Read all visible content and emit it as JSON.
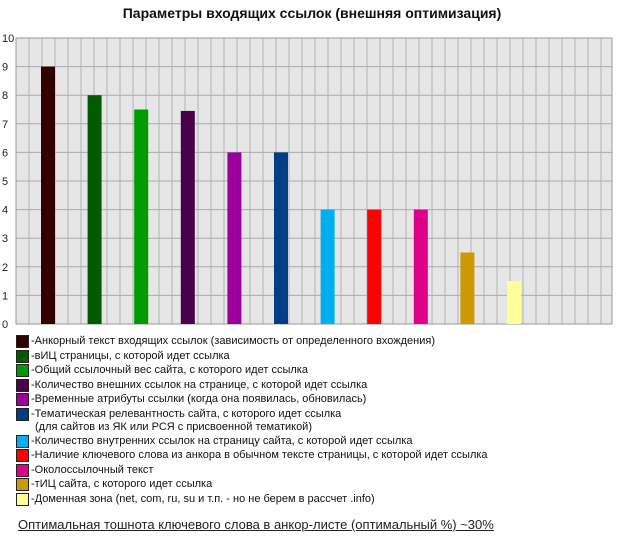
{
  "chart_data": {
    "type": "bar",
    "title": "Параметры входящих ссылок (внешняя оптимизация)",
    "xlabel": "",
    "ylabel": "",
    "ylim": [
      0,
      10
    ],
    "yticks": [
      "0",
      "1",
      "2",
      "3",
      "4",
      "5",
      "6",
      "7",
      "8",
      "9",
      "10"
    ],
    "grid": true,
    "legend_position": "bottom",
    "series": [
      {
        "name": "-Анкорный текст входящих ссылок (зависимость от определенного вхождения)",
        "value": 9,
        "color": "#330000"
      },
      {
        "name": "-вИЦ страницы, с которой идет ссылка",
        "value": 8,
        "color": "#005a00"
      },
      {
        "name": "-Общий ссылочный вес сайта, с которого идет ссылка",
        "value": 7.5,
        "color": "#009900"
      },
      {
        "name": "-Количество внешних ссылок на странице, с которой идет ссылка",
        "value": 7.45,
        "color": "#4a004a"
      },
      {
        "name": "-Временные атрибуты ссылки (когда она появилась, обновилась)",
        "value": 6,
        "color": "#990099"
      },
      {
        "name": "-Тематическая релевантность сайта, с которого идет ссылка",
        "name2": "(для сайтов из ЯК или РСЯ с присвоенной тематикой)",
        "value": 6,
        "color": "#003d87"
      },
      {
        "name": "-Количество внутренних ссылок на страницу сайта, с которой идет ссылка",
        "value": 4,
        "color": "#00b0ee"
      },
      {
        "name": "-Наличие ключевого слова из анкора в обычном тексте страницы, с которой идет ссылка",
        "value": 4,
        "color": "#ff0000"
      },
      {
        "name": "-Околоссылочный текст",
        "value": 4,
        "color": "#dd0088"
      },
      {
        "name": "-тИЦ сайта, с которого идет ссылка",
        "value": 2.5,
        "color": "#cc9900"
      },
      {
        "name": "-Доменная зона (net, com, ru, su и т.п. - но не берем в рассчет .info)",
        "value": 1.5,
        "color": "#ffff99"
      }
    ]
  },
  "note": "Оптимальная тошнота ключевого слова в анкор-листе (оптимальный %) ~30%"
}
